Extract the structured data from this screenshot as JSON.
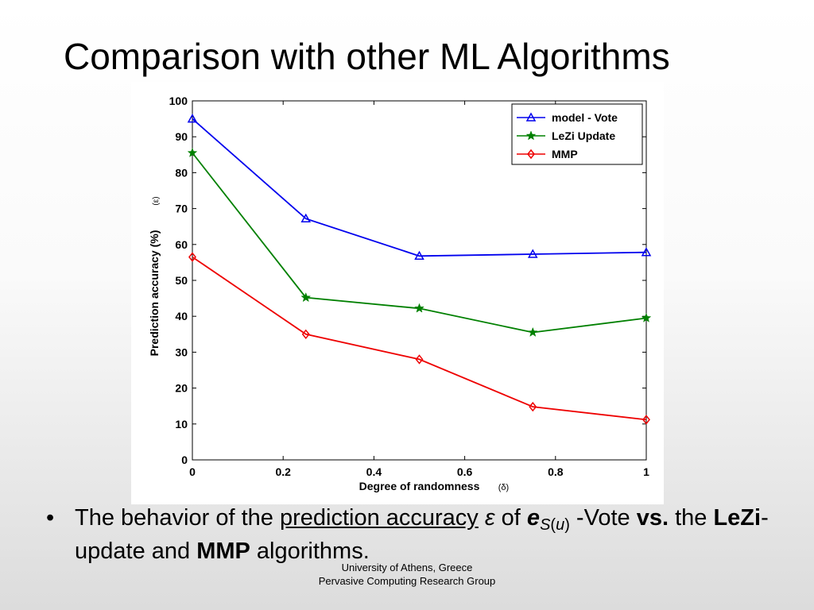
{
  "slide": {
    "title": "Comparison with other ML Algorithms"
  },
  "bullet": {
    "marker": "•",
    "text_1": "The behavior of the ",
    "link_text": "prediction accuracy",
    "text_2": " ",
    "epsilon": "ε",
    "text_3": " of ",
    "e_symbol": "e",
    "subscript_S": "S",
    "subscript_paren_open": "(",
    "subscript_u": "u",
    "subscript_paren_close": ")",
    "text_4": " -Vote ",
    "vs": "vs.",
    "text_5": " the ",
    "lezi": "LeZi",
    "text_6": "-update and ",
    "mmp": "MMP",
    "text_7": " algorithms."
  },
  "footer": {
    "line1": "University of Athens, Greece",
    "line2": "Pervasive Computing Research Group"
  },
  "chart_data": {
    "type": "line",
    "title": "",
    "xlabel": "Degree of randomness",
    "xlabel_symbol": "(δ)",
    "ylabel": "Prediction accuracy (%)",
    "ylabel_symbol": "(ε)",
    "x": [
      0,
      0.25,
      0.5,
      0.75,
      1
    ],
    "xlim": [
      0,
      1
    ],
    "ylim": [
      0,
      100
    ],
    "x_ticks": [
      0,
      0.2,
      0.4,
      0.6,
      0.8,
      1
    ],
    "x_tick_labels": [
      "0",
      "0.2",
      "0.4",
      "0.6",
      "0.8",
      "1"
    ],
    "y_ticks": [
      0,
      10,
      20,
      30,
      40,
      50,
      60,
      70,
      80,
      90,
      100
    ],
    "y_tick_labels": [
      "0",
      "10",
      "20",
      "30",
      "40",
      "50",
      "60",
      "70",
      "80",
      "90",
      "100"
    ],
    "grid": false,
    "legend_position": "top-right",
    "series": [
      {
        "name": "model - Vote",
        "values": [
          95,
          67.2,
          56.8,
          57.3,
          57.8
        ],
        "color": "#0000ee",
        "marker": "triangle"
      },
      {
        "name": "LeZi Update",
        "values": [
          85.5,
          45.2,
          42.2,
          35.5,
          39.5
        ],
        "color": "#008000",
        "marker": "star"
      },
      {
        "name": "MMP",
        "values": [
          56.5,
          35,
          28,
          14.8,
          11.2
        ],
        "color": "#ee0000",
        "marker": "diamond"
      }
    ]
  }
}
